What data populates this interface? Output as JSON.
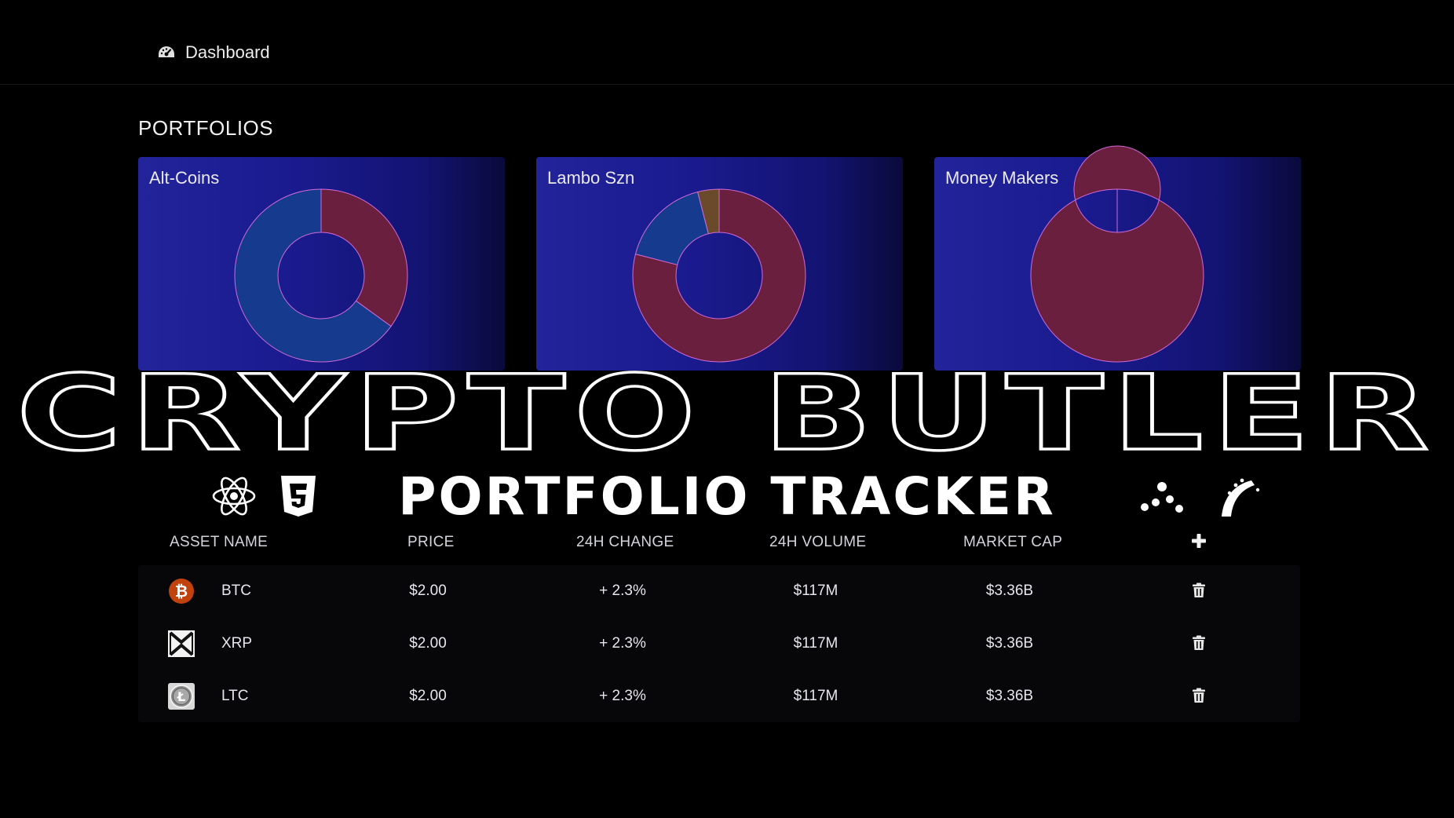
{
  "nav": {
    "dashboard_label": "Dashboard",
    "dashboard_icon": "gauge-icon"
  },
  "portfolios": {
    "heading": "PORTFOLIOS",
    "cards": [
      {
        "name": "Alt-Coins",
        "slices": [
          {
            "fraction": 0.35,
            "color": "#6b1f3e"
          },
          {
            "fraction": 0.65,
            "color": "#163a8e"
          }
        ]
      },
      {
        "name": "Lambo Szn",
        "slices": [
          {
            "fraction": 0.79,
            "color": "#6b1f3e"
          },
          {
            "fraction": 0.17,
            "color": "#163a8e"
          },
          {
            "fraction": 0.04,
            "color": "#6a4a2a"
          }
        ]
      },
      {
        "name": "Money Makers",
        "slices": [
          {
            "fraction": 1.0,
            "color": "#6b1f3e"
          }
        ]
      }
    ]
  },
  "overlay": {
    "title": "CRYPTO BUTLER",
    "subtitle": "PORTFOLIO TRACKER",
    "icons": [
      "react-icon",
      "css3-icon",
      "dots-icon",
      "rails-icon"
    ]
  },
  "table": {
    "headers": {
      "asset_name": "ASSET NAME",
      "price": "PRICE",
      "change_24h": "24H CHANGE",
      "volume_24h": "24H VOLUME",
      "market_cap": "MARKET CAP"
    },
    "add_icon": "plus-icon",
    "delete_icon": "trash-icon",
    "rows": [
      {
        "symbol": "BTC",
        "icon": "bitcoin-icon",
        "price": "$2.00",
        "change": "+ 2.3%",
        "volume": "$117M",
        "market_cap": "$3.36B"
      },
      {
        "symbol": "XRP",
        "icon": "xrp-icon",
        "price": "$2.00",
        "change": "+ 2.3%",
        "volume": "$117M",
        "market_cap": "$3.36B"
      },
      {
        "symbol": "LTC",
        "icon": "litecoin-icon",
        "price": "$2.00",
        "change": "+ 2.3%",
        "volume": "$117M",
        "market_cap": "$3.36B"
      }
    ]
  }
}
